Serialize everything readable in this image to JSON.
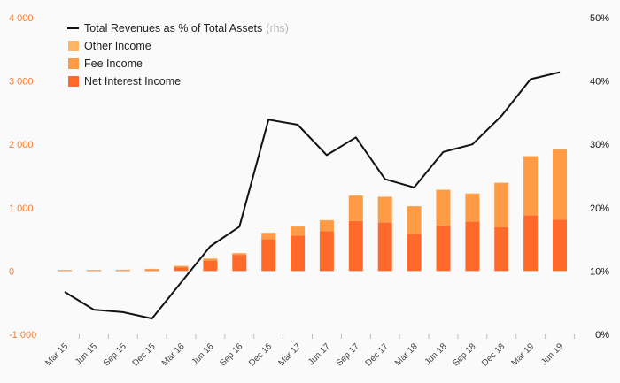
{
  "chart_data": {
    "type": "bar",
    "categories": [
      "Mar 15",
      "Jun 15",
      "Sep 15",
      "Dec 15",
      "Mar 16",
      "Jun 16",
      "Sep 16",
      "Dec 16",
      "Mar 17",
      "Jun 17",
      "Sep 17",
      "Dec 17",
      "Mar 18",
      "Jun 18",
      "Sep 18",
      "Dec 18",
      "Mar 19",
      "Jun 19"
    ],
    "series": [
      {
        "name": "Net Interest Income",
        "type": "bar",
        "axis": "left",
        "color": "#ff6a2b",
        "values": [
          8,
          8,
          8,
          15,
          55,
          165,
          255,
          500,
          560,
          630,
          790,
          770,
          590,
          720,
          780,
          690,
          880,
          810
        ]
      },
      {
        "name": "Fee Income",
        "type": "bar",
        "axis": "left",
        "color": "#ff9a45",
        "values": [
          10,
          10,
          12,
          18,
          25,
          30,
          25,
          100,
          140,
          170,
          400,
          400,
          430,
          560,
          440,
          700,
          930,
          1110
        ]
      },
      {
        "name": "Other Income",
        "type": "bar",
        "axis": "left",
        "color": "#ffb566",
        "values": [
          2,
          2,
          2,
          2,
          2,
          3,
          3,
          5,
          5,
          5,
          5,
          5,
          5,
          5,
          5,
          5,
          5,
          5
        ]
      },
      {
        "name": "Total Revenues as % of Total Assets",
        "name_suffix": "(rhs)",
        "type": "line",
        "axis": "right",
        "color": "#111111",
        "values": [
          6.7,
          3.9,
          3.5,
          2.5,
          8.2,
          13.9,
          17.0,
          33.9,
          33.1,
          28.3,
          31.1,
          24.5,
          23.2,
          28.8,
          30.0,
          34.5,
          40.3,
          41.4
        ]
      }
    ],
    "left_axis": {
      "ylim": [
        -1000,
        4000
      ],
      "ticks": [
        -1000,
        0,
        1000,
        2000,
        3000,
        4000
      ],
      "tick_labels": [
        "-1 000",
        "0",
        "1 000",
        "2 000",
        "3 000",
        "4 000"
      ],
      "color": "#f07e3a"
    },
    "right_axis": {
      "ylim": [
        0,
        50
      ],
      "ticks": [
        0,
        10,
        20,
        30,
        40,
        50
      ],
      "tick_labels": [
        "0%",
        "10%",
        "20%",
        "30%",
        "40%",
        "50%"
      ]
    },
    "legend": {
      "placement": "top-left",
      "entries": [
        {
          "label": "Total Revenues as % of Total Assets",
          "suffix": "(rhs)",
          "kind": "line",
          "color": "#111111"
        },
        {
          "label": "Other Income",
          "kind": "box",
          "color": "#ffb566"
        },
        {
          "label": "Fee Income",
          "kind": "box",
          "color": "#ff9a45"
        },
        {
          "label": "Net Interest Income",
          "kind": "box",
          "color": "#ff6a2b"
        }
      ]
    },
    "grid": false
  }
}
